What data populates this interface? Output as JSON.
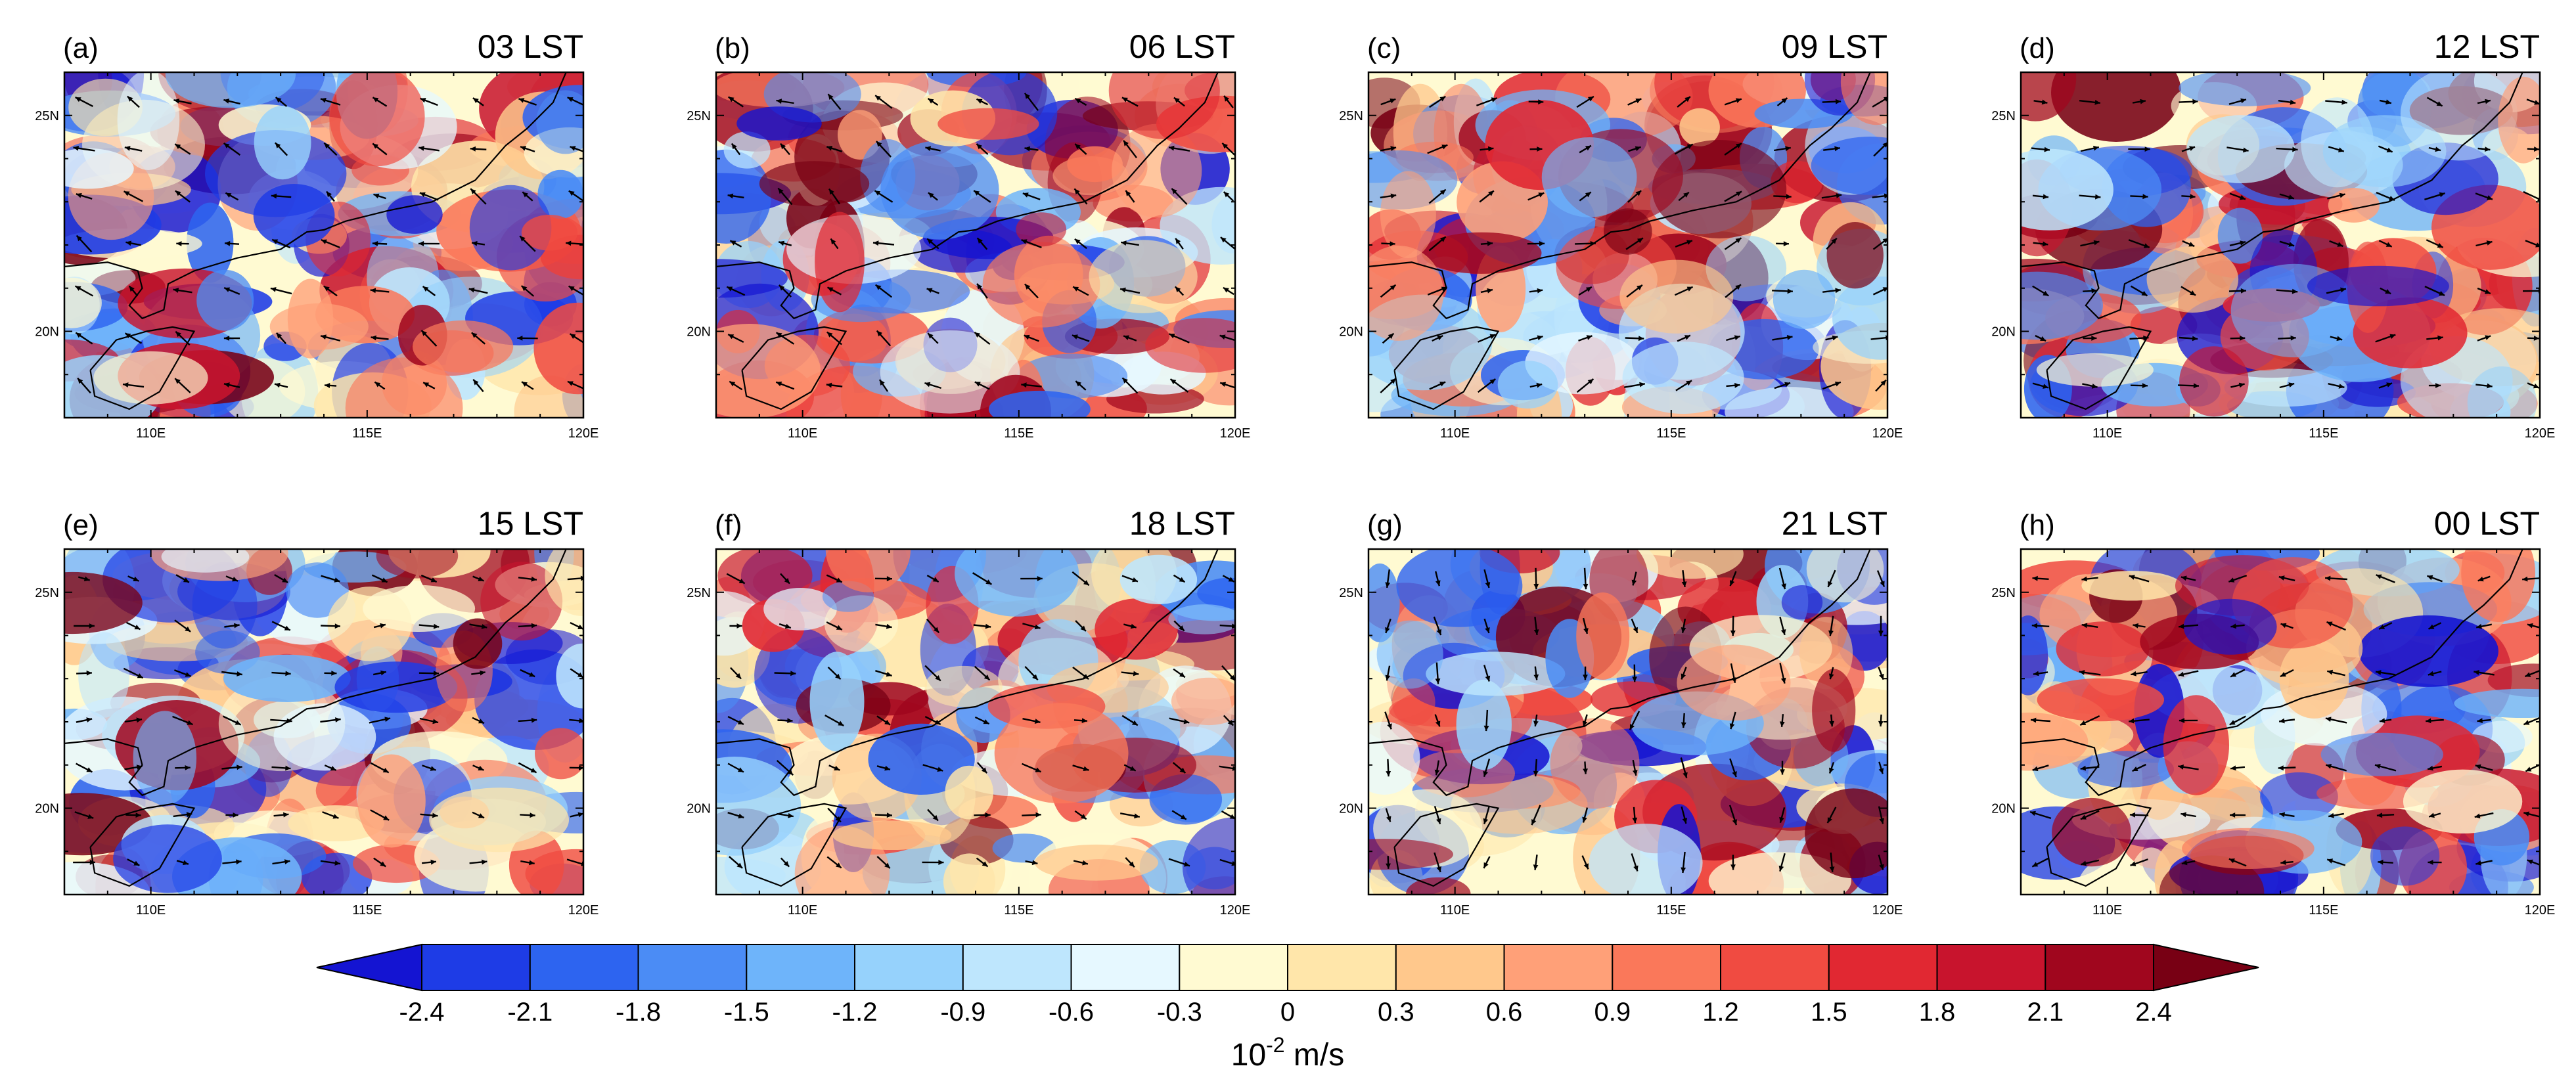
{
  "chart_data": {
    "type": "heatmap",
    "layout": "2x4 grid of map panels",
    "panels": [
      {
        "label": "(a)",
        "time": "03 LST"
      },
      {
        "label": "(b)",
        "time": "06 LST"
      },
      {
        "label": "(c)",
        "time": "09 LST"
      },
      {
        "label": "(d)",
        "time": "12 LST"
      },
      {
        "label": "(e)",
        "time": "15 LST"
      },
      {
        "label": "(f)",
        "time": "18 LST"
      },
      {
        "label": "(g)",
        "time": "21 LST"
      },
      {
        "label": "(h)",
        "time": "00 LST"
      }
    ],
    "x_axis": {
      "ticks": [
        "110E",
        "115E",
        "120E"
      ],
      "tick_values": [
        110,
        115,
        120
      ],
      "range": [
        108,
        120
      ]
    },
    "y_axis": {
      "ticks": [
        "20N",
        "25N"
      ],
      "tick_values": [
        20,
        25
      ],
      "range": [
        18,
        26
      ]
    },
    "colorbar": {
      "levels": [
        "-2.4",
        "-2.1",
        "-1.8",
        "-1.5",
        "-1.2",
        "-0.9",
        "-0.6",
        "-0.3",
        "0",
        "0.3",
        "0.6",
        "0.9",
        "1.2",
        "1.5",
        "1.8",
        "2.1",
        "2.4"
      ],
      "colors": [
        "#1414d2",
        "#1e3ce6",
        "#2d64f0",
        "#4b8cf5",
        "#6eb4fa",
        "#96d2fc",
        "#bee6fd",
        "#e6f8ff",
        "#fffad2",
        "#ffe6aa",
        "#ffc88c",
        "#ffa078",
        "#fa785a",
        "#f04b41",
        "#e12832",
        "#c8142d",
        "#a0061e",
        "#780014"
      ],
      "unit_base": "10",
      "unit_exp": "-2",
      "unit_rest": " m/s"
    }
  }
}
